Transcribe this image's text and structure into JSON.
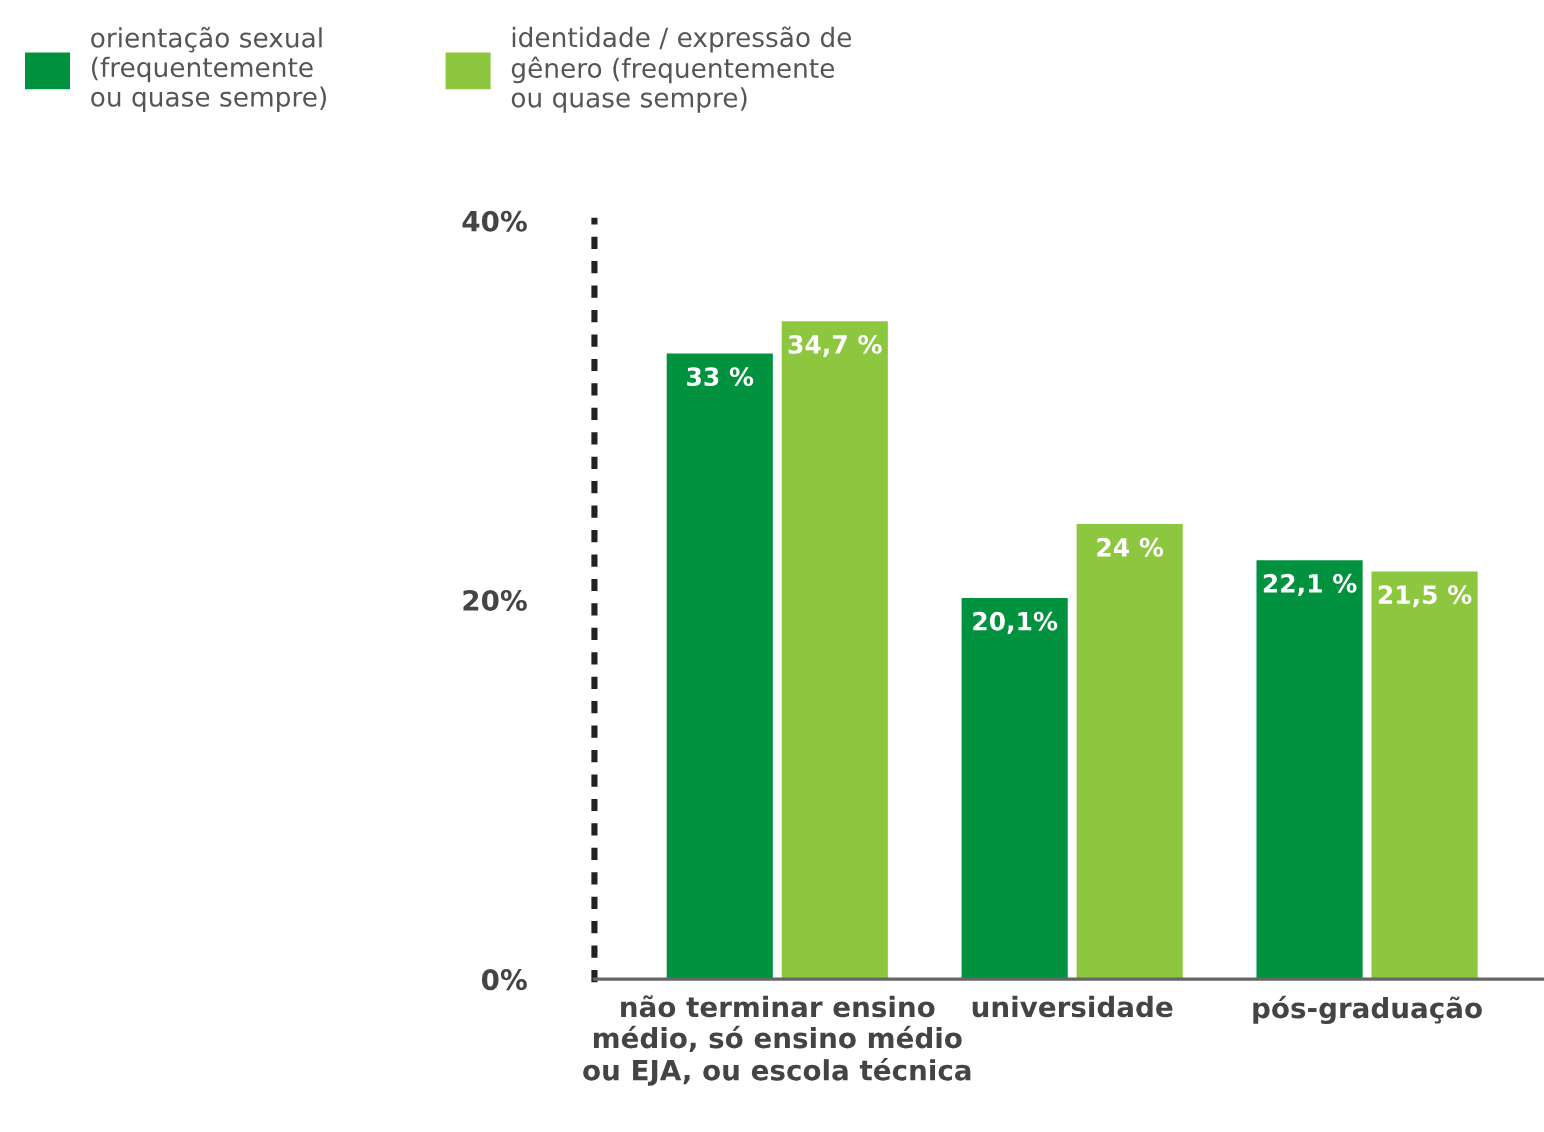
{
  "chart_data": {
    "type": "bar",
    "categories": [
      "não terminar ensino\nmédio, só ensino médio\nou EJA, ou escola técnica",
      "universidade",
      "pós-graduação"
    ],
    "series": [
      {
        "name": "orientação sexual\n(frequentemente\nou quase sempre)",
        "color": "#00923f",
        "values": [
          33,
          20.1,
          22.1
        ],
        "value_labels": [
          "33 %",
          "20,1%",
          "22,1 %"
        ]
      },
      {
        "name": "identidade / expressão de\ngênero (frequentemente\nou quase sempre)",
        "color": "#8dc63f",
        "values": [
          34.7,
          24,
          21.5
        ],
        "value_labels": [
          "34,7 %",
          "24 %",
          "21,5 %"
        ]
      }
    ],
    "ylim": [
      0,
      40
    ],
    "yticks": [
      {
        "value": 0,
        "label": "0%"
      },
      {
        "value": 20,
        "label": "20%"
      },
      {
        "value": 40,
        "label": "40%"
      }
    ],
    "grid": false,
    "legend": "top left"
  }
}
